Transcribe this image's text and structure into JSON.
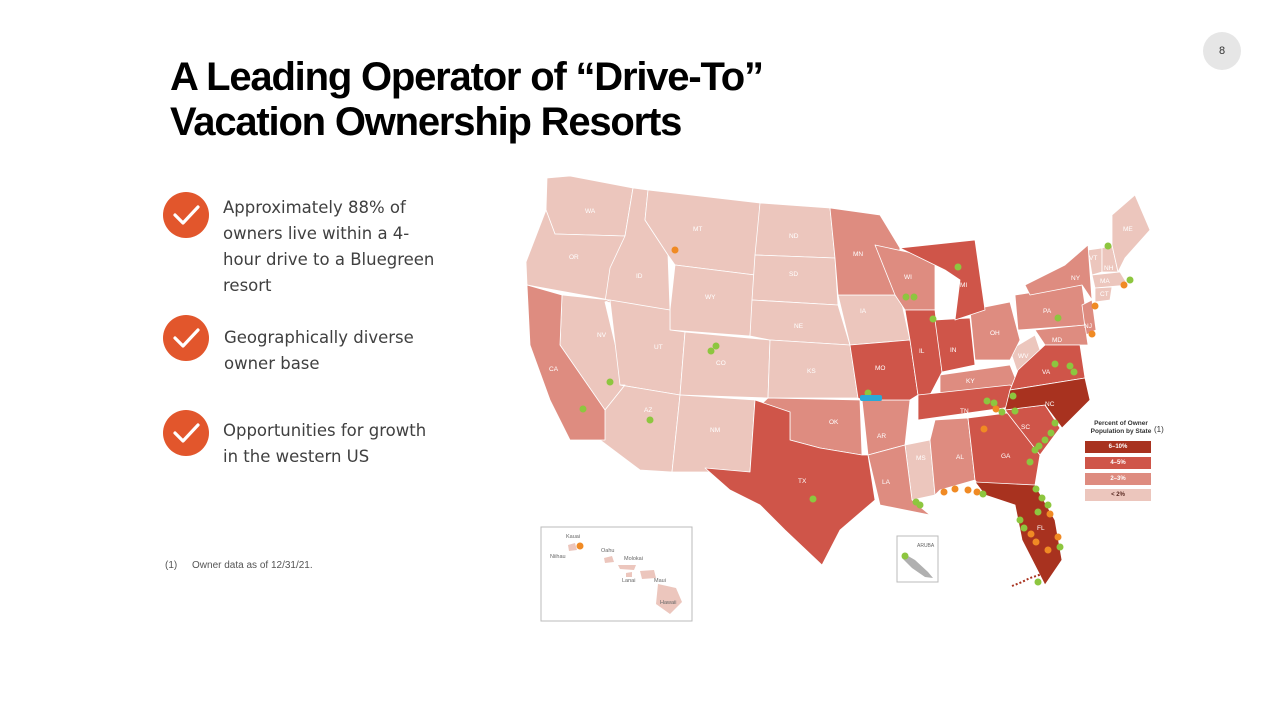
{
  "page_number": "8",
  "title": {
    "line1": "A Leading Operator of “Drive-To”",
    "line2": "Vacation Ownership Resorts"
  },
  "bullets": [
    {
      "icon": "check-icon",
      "text": "Approximately 88% of owners live within a 4-hour drive to a Bluegreen resort"
    },
    {
      "icon": "check-icon",
      "text": "Geographically diverse owner base"
    },
    {
      "icon": "check-icon",
      "text": "Opportunities for growth in the western US"
    }
  ],
  "footnote": {
    "mark": "(1)",
    "text": "Owner data as of 12/31/21."
  },
  "map": {
    "state_labels": [
      "WA",
      "OR",
      "CA",
      "NV",
      "ID",
      "MT",
      "WY",
      "UT",
      "AZ",
      "CO",
      "NM",
      "ND",
      "SD",
      "NE",
      "KS",
      "OK",
      "TX",
      "MN",
      "IA",
      "MO",
      "AR",
      "LA",
      "WI",
      "IL",
      "MI",
      "IN",
      "OH",
      "KY",
      "TN",
      "MS",
      "AL",
      "GA",
      "FL",
      "SC",
      "NC",
      "VA",
      "WV",
      "PA",
      "NY",
      "MD",
      "NJ",
      "CT",
      "MA",
      "VT",
      "NH",
      "ME"
    ],
    "inset_labels": {
      "hawaii": [
        "Kauai",
        "Niihau",
        "Oahu",
        "Molokai",
        "Lanai",
        "Maui",
        "Hawaii"
      ],
      "aruba": "ARUBA"
    },
    "colors": {
      "tier_6_10": "#a8321f",
      "tier_4_5": "#cf5549",
      "tier_2_3": "#de8c80",
      "tier_lt2": "#ecc6bd",
      "resort_green": "#8dc63f",
      "resort_orange": "#f08a24",
      "resort_blue": "#2aa9d6"
    }
  },
  "legend": {
    "title": "Percent of Owner Population by State",
    "ref": "(1)",
    "items": [
      {
        "label": "6–10%",
        "color": "#a8321f"
      },
      {
        "label": "4–5%",
        "color": "#cf5549"
      },
      {
        "label": "2–3%",
        "color": "#de8c80"
      },
      {
        "label": "< 2%",
        "color": "#ecc6bd"
      }
    ]
  }
}
